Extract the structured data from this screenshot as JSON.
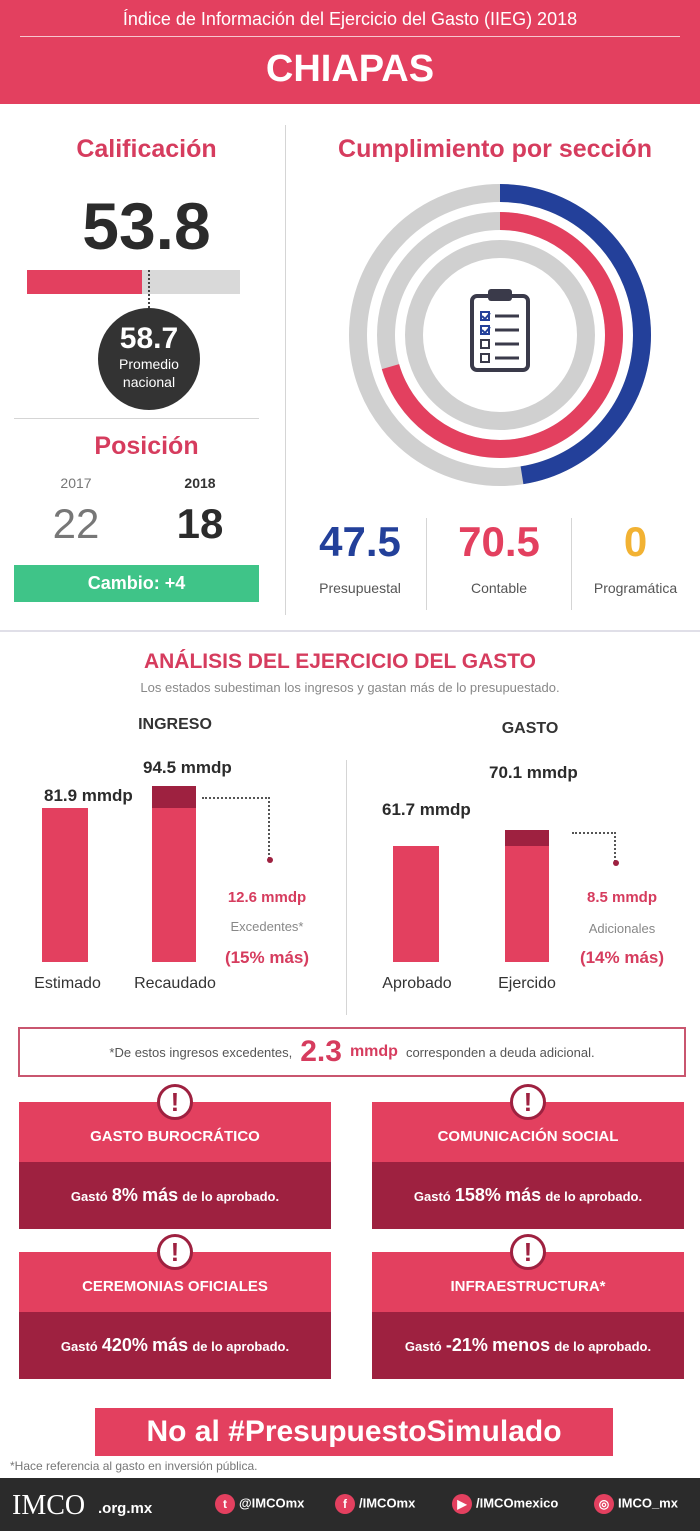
{
  "header": {
    "subtitle": "Índice de Información del Ejercicio del Gasto (IIEG) 2018",
    "state": "CHIAPAS"
  },
  "calificacion": {
    "title": "Calificación",
    "score": "53.8",
    "score_fraction": 0.538,
    "nacional_value": "58.7",
    "nacional_label_1": "Promedio",
    "nacional_label_2": "nacional"
  },
  "posicion": {
    "title": "Posición",
    "year_prev": "2017",
    "year_curr": "2018",
    "pos_prev": "22",
    "pos_curr": "18",
    "cambio": "Cambio: +4"
  },
  "cumplimiento": {
    "title": "Cumplimiento por sección",
    "icon": "clipboard-checklist-icon",
    "sections": [
      {
        "value": "47.5",
        "label": "Presupuestal",
        "color": "#23409a",
        "pct": 47.5
      },
      {
        "value": "70.5",
        "label": "Contable",
        "color": "#e3405f",
        "pct": 70.5
      },
      {
        "value": "0",
        "label": "Programática",
        "color": "#f2b233",
        "pct": 0
      }
    ]
  },
  "analisis": {
    "title": "ANÁLISIS DEL EJERCICIO DEL GASTO",
    "subtitle": "Los estados subestiman los ingresos y gastan más de lo presupuestado.",
    "ingreso": {
      "title": "INGRESO",
      "estimado_value": "81.9 mmdp",
      "estimado_label": "Estimado",
      "recaudado_value": "94.5 mmdp",
      "recaudado_label": "Recaudado",
      "diff_value": "12.6 mmdp",
      "diff_label": "Excedentes*",
      "diff_pct": "(15% más)"
    },
    "gasto": {
      "title": "GASTO",
      "aprobado_value": "61.7 mmdp",
      "aprobado_label": "Aprobado",
      "ejercido_value": "70.1 mmdp",
      "ejercido_label": "Ejercido",
      "diff_value": "8.5 mmdp",
      "diff_label": "Adicionales",
      "diff_pct": "(14% más)"
    },
    "deuda": {
      "pre": "*De estos ingresos excedentes,",
      "value": "2.3",
      "unit": "mmdp",
      "post": "corresponden a deuda adicional."
    }
  },
  "alerts": [
    {
      "title": "GASTO BUROCRÁTICO",
      "pre": "Gastó",
      "pct": "8%",
      "word": "más",
      "post": "de lo aprobado."
    },
    {
      "title": "COMUNICACIÓN SOCIAL",
      "pre": "Gastó",
      "pct": "158%",
      "word": "más",
      "post": "de lo aprobado."
    },
    {
      "title": "CEREMONIAS OFICIALES",
      "pre": "Gastó",
      "pct": "420%",
      "word": "más",
      "post": "de lo aprobado."
    },
    {
      "title": "INFRAESTRUCTURA*",
      "pre": "Gastó",
      "pct": "-21%",
      "word": "menos",
      "post": "de lo aprobado."
    }
  ],
  "slogan": "No al #PresupuestoSimulado",
  "footnote": "*Hace referencia al gasto en inversión pública.",
  "footer": {
    "logo_text": "IMCO",
    "domain": ".org.mx",
    "twitter": "@IMCOmx",
    "facebook": "/IMCOmx",
    "youtube": "/IMCOmexico",
    "instagram": "IMCO_mx"
  }
}
